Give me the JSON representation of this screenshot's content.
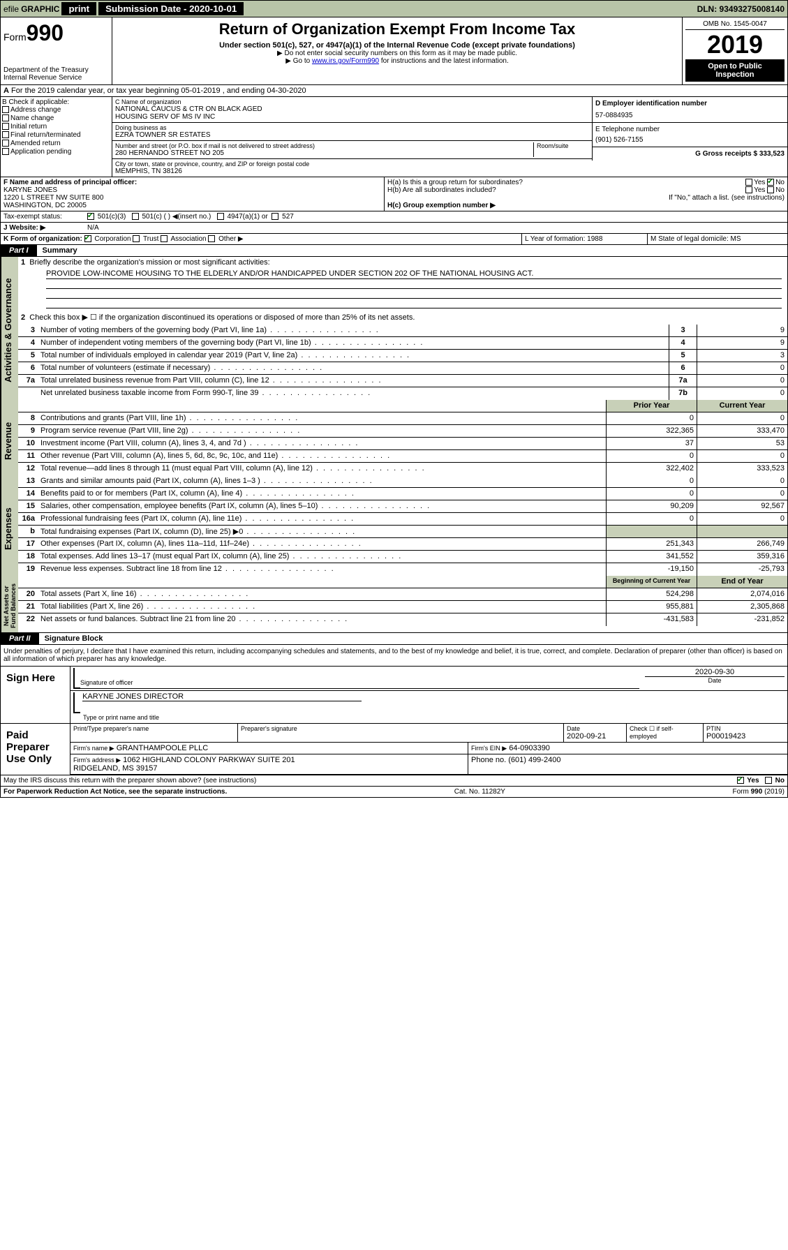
{
  "topbar": {
    "efile_prefix": "efile",
    "efile_graphic": "GRAPHIC",
    "print": "print",
    "submission_label": "Submission Date - 2020-10-01",
    "dln_label": "DLN: 93493275008140"
  },
  "header": {
    "form_prefix": "Form",
    "form_number": "990",
    "dept": "Department of the Treasury",
    "irs": "Internal Revenue Service",
    "title": "Return of Organization Exempt From Income Tax",
    "subtitle": "Under section 501(c), 527, or 4947(a)(1) of the Internal Revenue Code (except private foundations)",
    "note1": "▶ Do not enter social security numbers on this form as it may be made public.",
    "note2_prefix": "▶ Go to ",
    "note2_link": "www.irs.gov/Form990",
    "note2_suffix": " for instructions and the latest information.",
    "omb": "OMB No. 1545-0047",
    "year": "2019",
    "open_public": "Open to Public Inspection"
  },
  "line_a": "For the 2019 calendar year, or tax year beginning 05-01-2019   , and ending 04-30-2020",
  "section_b": {
    "label": "B Check if applicable:",
    "items": [
      "Address change",
      "Name change",
      "Initial return",
      "Final return/terminated",
      "Amended return",
      "Application pending"
    ]
  },
  "section_c": {
    "name_label": "C Name of organization",
    "name1": "NATIONAL CAUCUS & CTR ON BLACK AGED",
    "name2": "HOUSING SERV OF MS IV INC",
    "dba_label": "Doing business as",
    "dba": "EZRA TOWNER SR ESTATES",
    "addr_label": "Number and street (or P.O. box if mail is not delivered to street address)",
    "room_label": "Room/suite",
    "addr": "280 HERNANDO STREET NO 205",
    "city_label": "City or town, state or province, country, and ZIP or foreign postal code",
    "city": "MEMPHIS, TN  38126"
  },
  "section_d": {
    "label": "D Employer identification number",
    "value": "57-0884935"
  },
  "section_e": {
    "label": "E Telephone number",
    "value": "(901) 526-7155"
  },
  "section_g": {
    "label": "G Gross receipts $ 333,523"
  },
  "section_f": {
    "label": "F  Name and address of principal officer:",
    "name": "KARYNE JONES",
    "addr1": "1220 L STREET NW SUITE 800",
    "addr2": "WASHINGTON, DC  20005"
  },
  "section_h": {
    "a": "H(a)  Is this a group return for subordinates?",
    "b": "H(b)  Are all subordinates included?",
    "c_prefix": "H(c)  Group exemption number ▶",
    "attach": "If \"No,\" attach a list. (see instructions)",
    "yes": "Yes",
    "no": "No"
  },
  "tax_exempt": {
    "label": "Tax-exempt status:",
    "opt1": "501(c)(3)",
    "opt2": "501(c) (  ) ◀(insert no.)",
    "opt3": "4947(a)(1) or",
    "opt4": "527"
  },
  "website": {
    "label": "J   Website: ▶",
    "value": "N/A"
  },
  "section_k": {
    "label": "K Form of organization:",
    "corp": "Corporation",
    "trust": "Trust",
    "assoc": "Association",
    "other": "Other ▶"
  },
  "section_l": {
    "label": "L Year of formation: 1988"
  },
  "section_m": {
    "label": "M State of legal domicile: MS"
  },
  "part1": {
    "tab": "Part I",
    "title": "Summary",
    "line1_label": "Briefly describe the organization's mission or most significant activities:",
    "mission": "PROVIDE LOW-INCOME HOUSING TO THE ELDERLY AND/OR HANDICAPPED UNDER SECTION 202 OF THE NATIONAL HOUSING ACT.",
    "line2": "Check this box ▶ ☐  if the organization discontinued its operations or disposed of more than 25% of its net assets.",
    "sections": {
      "gov": "Activities & Governance",
      "rev": "Revenue",
      "exp": "Expenses",
      "net": "Net Assets or Fund Balances"
    },
    "rows": [
      {
        "n": "3",
        "t": "Number of voting members of the governing body (Part VI, line 1a)",
        "c": "3",
        "v": "9"
      },
      {
        "n": "4",
        "t": "Number of independent voting members of the governing body (Part VI, line 1b)",
        "c": "4",
        "v": "9"
      },
      {
        "n": "5",
        "t": "Total number of individuals employed in calendar year 2019 (Part V, line 2a)",
        "c": "5",
        "v": "3"
      },
      {
        "n": "6",
        "t": "Total number of volunteers (estimate if necessary)",
        "c": "6",
        "v": "0"
      },
      {
        "n": "7a",
        "t": "Total unrelated business revenue from Part VIII, column (C), line 12",
        "c": "7a",
        "v": "0"
      },
      {
        "n": "",
        "t": "Net unrelated business taxable income from Form 990-T, line 39",
        "c": "7b",
        "v": "0"
      }
    ],
    "year_header": {
      "prior": "Prior Year",
      "current": "Current Year"
    },
    "rev_rows": [
      {
        "n": "8",
        "t": "Contributions and grants (Part VIII, line 1h)",
        "p": "0",
        "c": "0"
      },
      {
        "n": "9",
        "t": "Program service revenue (Part VIII, line 2g)",
        "p": "322,365",
        "c": "333,470"
      },
      {
        "n": "10",
        "t": "Investment income (Part VIII, column (A), lines 3, 4, and 7d )",
        "p": "37",
        "c": "53"
      },
      {
        "n": "11",
        "t": "Other revenue (Part VIII, column (A), lines 5, 6d, 8c, 9c, 10c, and 11e)",
        "p": "0",
        "c": "0"
      },
      {
        "n": "12",
        "t": "Total revenue—add lines 8 through 11 (must equal Part VIII, column (A), line 12)",
        "p": "322,402",
        "c": "333,523"
      }
    ],
    "exp_rows": [
      {
        "n": "13",
        "t": "Grants and similar amounts paid (Part IX, column (A), lines 1–3 )",
        "p": "0",
        "c": "0"
      },
      {
        "n": "14",
        "t": "Benefits paid to or for members (Part IX, column (A), line 4)",
        "p": "0",
        "c": "0"
      },
      {
        "n": "15",
        "t": "Salaries, other compensation, employee benefits (Part IX, column (A), lines 5–10)",
        "p": "90,209",
        "c": "92,567"
      },
      {
        "n": "16a",
        "t": "Professional fundraising fees (Part IX, column (A), line 11e)",
        "p": "0",
        "c": "0"
      },
      {
        "n": "b",
        "t": "Total fundraising expenses (Part IX, column (D), line 25) ▶0",
        "p": "",
        "c": ""
      },
      {
        "n": "17",
        "t": "Other expenses (Part IX, column (A), lines 11a–11d, 11f–24e)",
        "p": "251,343",
        "c": "266,749"
      },
      {
        "n": "18",
        "t": "Total expenses. Add lines 13–17 (must equal Part IX, column (A), line 25)",
        "p": "341,552",
        "c": "359,316"
      },
      {
        "n": "19",
        "t": "Revenue less expenses. Subtract line 18 from line 12",
        "p": "-19,150",
        "c": "-25,793"
      }
    ],
    "net_header": {
      "begin": "Beginning of Current Year",
      "end": "End of Year"
    },
    "net_rows": [
      {
        "n": "20",
        "t": "Total assets (Part X, line 16)",
        "p": "524,298",
        "c": "2,074,016"
      },
      {
        "n": "21",
        "t": "Total liabilities (Part X, line 26)",
        "p": "955,881",
        "c": "2,305,868"
      },
      {
        "n": "22",
        "t": "Net assets or fund balances. Subtract line 21 from line 20",
        "p": "-431,583",
        "c": "-231,852"
      }
    ]
  },
  "part2": {
    "tab": "Part II",
    "title": "Signature Block",
    "perjury": "Under penalties of perjury, I declare that I have examined this return, including accompanying schedules and statements, and to the best of my knowledge and belief, it is true, correct, and complete. Declaration of preparer (other than officer) is based on all information of which preparer has any knowledge.",
    "sign_here": "Sign Here",
    "sig_officer": "Signature of officer",
    "sig_date": "2020-09-30",
    "date": "Date",
    "officer_name": "KARYNE JONES DIRECTOR",
    "type_name": "Type or print name and title",
    "paid": "Paid Preparer Use Only",
    "prep_name_label": "Print/Type preparer's name",
    "prep_sig_label": "Preparer's signature",
    "prep_date": "2020-09-21",
    "check_self": "Check ☐ if self-employed",
    "ptin_label": "PTIN",
    "ptin": "P00019423",
    "firm_name_label": "Firm's name    ▶",
    "firm_name": "GRANTHAMPOOLE PLLC",
    "firm_ein_label": "Firm's EIN ▶",
    "firm_ein": "64-0903390",
    "firm_addr_label": "Firm's address ▶",
    "firm_addr": "1062 HIGHLAND COLONY PARKWAY SUITE 201\nRIDGELAND, MS  39157",
    "phone_label": "Phone no. (601) 499-2400",
    "discuss": "May the IRS discuss this return with the preparer shown above? (see instructions)"
  },
  "footer": {
    "left": "For Paperwork Reduction Act Notice, see the separate instructions.",
    "center": "Cat. No. 11282Y",
    "right": "Form 990 (2019)"
  }
}
